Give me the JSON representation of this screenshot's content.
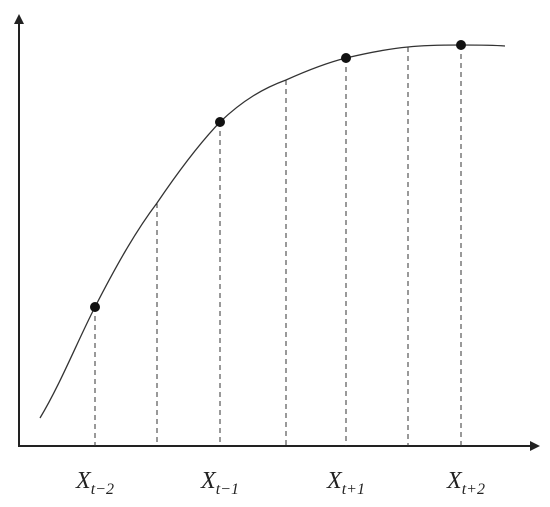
{
  "labels": [
    {
      "base": "X",
      "sub": "t−2"
    },
    {
      "base": "X",
      "sub": "t−1"
    },
    {
      "base": "X",
      "sub": "t+1"
    },
    {
      "base": "X",
      "sub": "t+2"
    }
  ]
}
